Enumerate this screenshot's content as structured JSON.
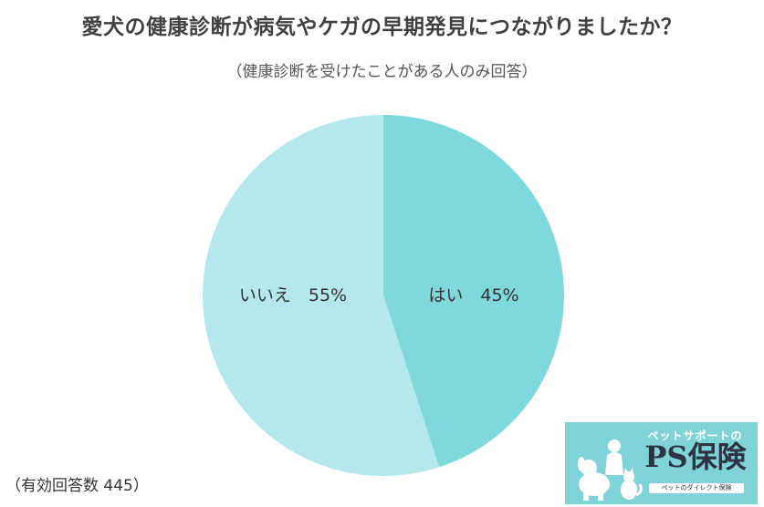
{
  "chart_data": {
    "type": "pie",
    "title": "愛犬の健康診断が病気やケガの早期発見につながりましたか？",
    "subtitle": "（健康診断を受けたことがある人のみ回答）",
    "slices": [
      {
        "label": "はい",
        "value": 45,
        "value_label": "45%",
        "color": "#7fd9dc"
      },
      {
        "label": "いいえ",
        "value": 55,
        "value_label": "55%",
        "color": "#b4e8ea"
      }
    ],
    "start_angle_deg": 0,
    "direction": "clockwise",
    "footnote": "（有効回答数 445）"
  },
  "logo": {
    "tagline": "ペットサポートの",
    "brand": "PS保険",
    "subline": "ペットのダイレクト保険",
    "background_color": "#7fd3d8",
    "icon": "dog-and-cat-icon"
  }
}
